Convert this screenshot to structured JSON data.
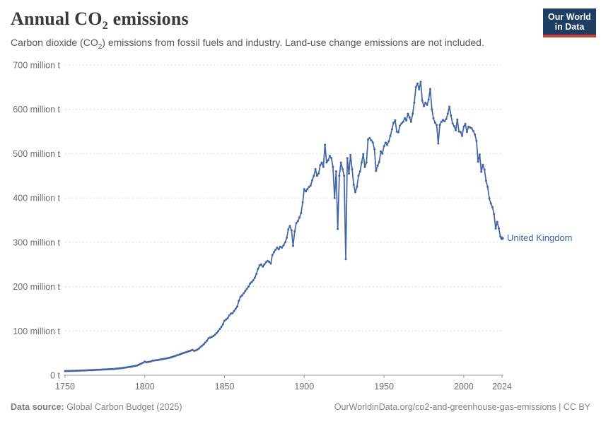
{
  "header": {
    "title_pre": "Annual CO",
    "title_sub": "2",
    "title_post": " emissions",
    "subtitle_pre": "Carbon dioxide (CO",
    "subtitle_sub": "2",
    "subtitle_post": ") emissions from fossil fuels and industry. Land-use change emissions are not included."
  },
  "logo": {
    "line1": "Our World",
    "line2": "in Data",
    "bg_color": "#1d3d63",
    "bar_color": "#d43b31"
  },
  "footer": {
    "source_label": "Data source:",
    "source_value": " Global Carbon Budget (2025)",
    "link": "OurWorldinData.org/co2-and-greenhouse-gas-emissions | CC BY"
  },
  "chart_data": {
    "type": "line",
    "title": "Annual CO₂ emissions",
    "entity_label": "United Kingdom",
    "unit": "million tonnes of CO₂",
    "line_color": "#4263a4",
    "grid": true,
    "gridline_color": "#dcdcdc",
    "axis_color": "#9a9a9a",
    "tick_text_color": "#6e6e73",
    "x": {
      "start_year": 1750,
      "end_year": 2024,
      "ticks": [
        1750,
        1800,
        1850,
        1900,
        1950,
        2000,
        2024
      ]
    },
    "y": {
      "min": 0,
      "max": 700,
      "ticks": [
        0,
        100,
        200,
        300,
        400,
        500,
        600,
        700
      ],
      "tick_labels": [
        "0 t",
        "100 million t",
        "200 million t",
        "300 million t",
        "400 million t",
        "500 million t",
        "600 million t",
        "700 million t"
      ]
    },
    "values": [
      9.4,
      9.5,
      9.6,
      9.7,
      9.8,
      9.9,
      10,
      10.2,
      10.3,
      10.4,
      10.6,
      10.7,
      10.9,
      11,
      11.2,
      11.3,
      11.5,
      11.7,
      11.8,
      12,
      12.2,
      12.4,
      12.6,
      12.7,
      12.9,
      13.1,
      13.3,
      13.5,
      13.7,
      13.9,
      14.1,
      14.4,
      14.8,
      15.1,
      15.5,
      15.9,
      16.4,
      16.9,
      17.4,
      18,
      18.6,
      19.2,
      19.8,
      20.4,
      21,
      21.7,
      23.3,
      25,
      26.7,
      28.6,
      30.6,
      29.3,
      29.8,
      30.4,
      31.2,
      33,
      33.4,
      33.8,
      34.2,
      34.9,
      35.6,
      36.2,
      36.8,
      37.5,
      38.2,
      39,
      40,
      41.1,
      42.2,
      43.4,
      44.6,
      45.8,
      47.1,
      48.4,
      49.7,
      51,
      52.2,
      53.4,
      54.7,
      56,
      57.2,
      55,
      56,
      58,
      60.5,
      64,
      67,
      70,
      74,
      78,
      83.5,
      85,
      86.5,
      88.5,
      91.5,
      95,
      99,
      104,
      109,
      115,
      123,
      126,
      129,
      135,
      139,
      140,
      145,
      150,
      155,
      168,
      177,
      180,
      185,
      190,
      195,
      200,
      207,
      210,
      214,
      220,
      229,
      240,
      248,
      250,
      245,
      250,
      255,
      258,
      256,
      252,
      271,
      278,
      283,
      288,
      284,
      290,
      288,
      293,
      300,
      310,
      329,
      337,
      327,
      292,
      325,
      343,
      348,
      356,
      366,
      390,
      420,
      415,
      420,
      425,
      428,
      440,
      450,
      465,
      450,
      455,
      474,
      480,
      470,
      520,
      480,
      485,
      495,
      490,
      470,
      400,
      460,
      330,
      450,
      480,
      465,
      450,
      262,
      490,
      455,
      497,
      465,
      430,
      413,
      425,
      450,
      460,
      480,
      499,
      470,
      480,
      532,
      535,
      530,
      525,
      510,
      461,
      473,
      481,
      505,
      500,
      517,
      525,
      520,
      528,
      540,
      555,
      570,
      575,
      550,
      548,
      563,
      568,
      572,
      580,
      575,
      590,
      582,
      572,
      590,
      615,
      650,
      658,
      645,
      662,
      620,
      607,
      615,
      610,
      622,
      646,
      600,
      580,
      570,
      565,
      523,
      565,
      572,
      576,
      573,
      578,
      590,
      606,
      586,
      568,
      562,
      553,
      577,
      550,
      549,
      540,
      561,
      567,
      549,
      561,
      559,
      557,
      551,
      543,
      529,
      482,
      498,
      459,
      475,
      464,
      439,
      425,
      399,
      388,
      379,
      364,
      331,
      346,
      331,
      313,
      309
    ]
  }
}
